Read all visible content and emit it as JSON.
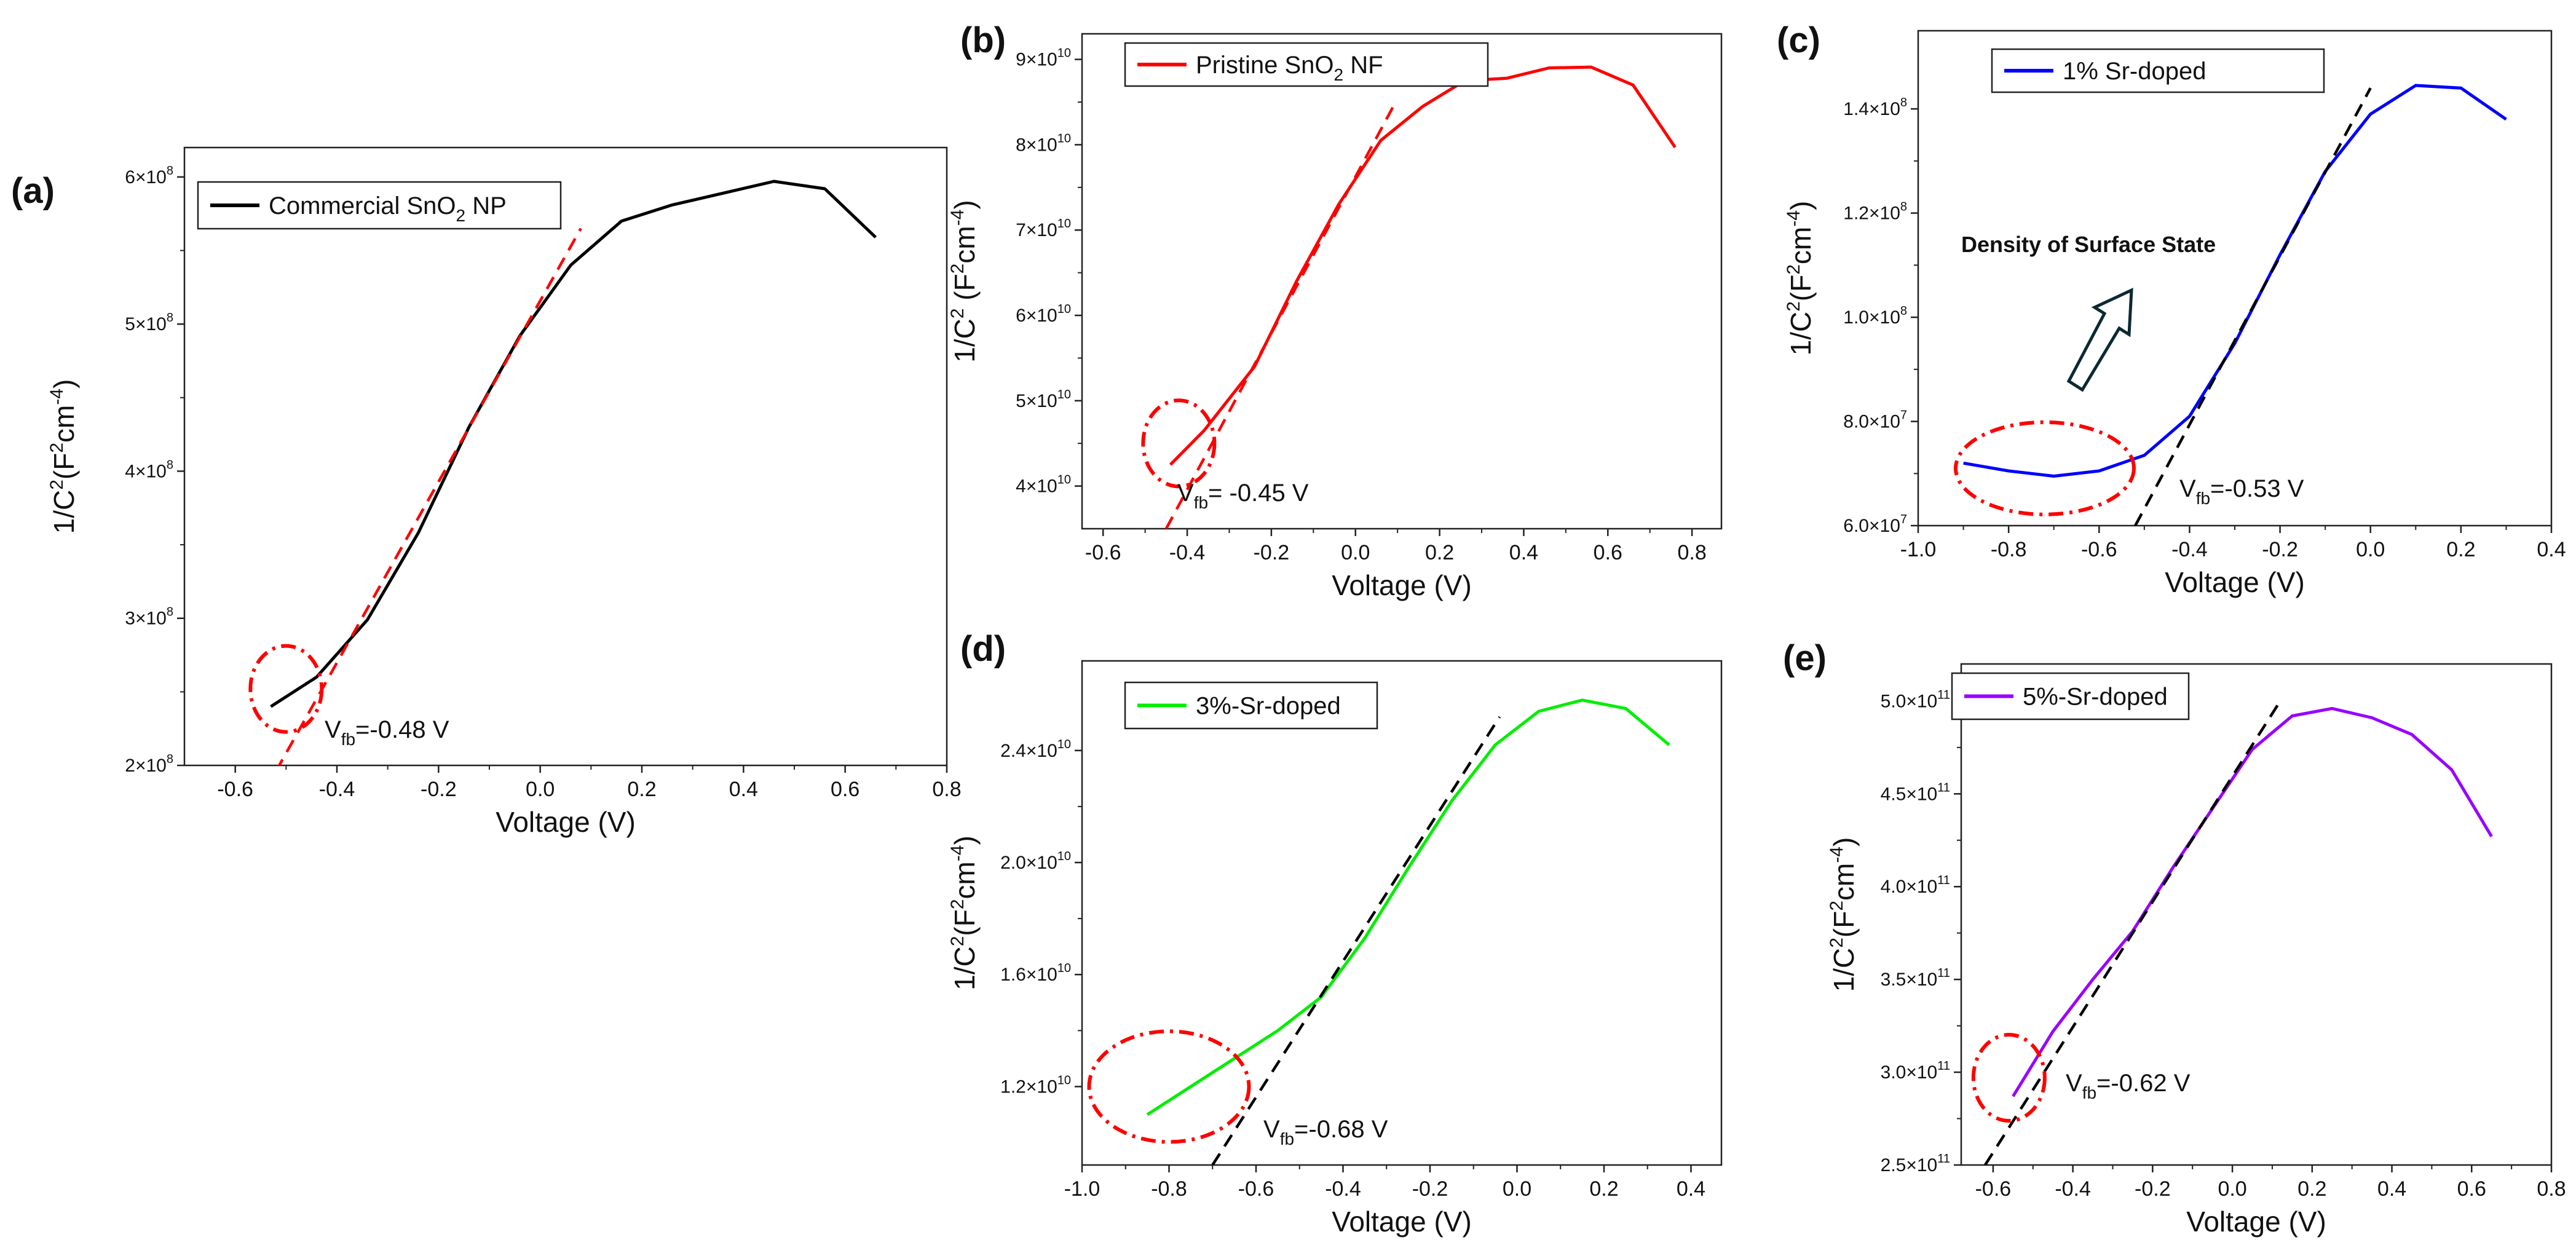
{
  "figure": {
    "panels": [
      "a",
      "b",
      "c",
      "d",
      "e"
    ]
  },
  "chart_data": [
    {
      "id": "a",
      "type": "line",
      "panel_label": "(a)",
      "series": [
        {
          "name": "Commercial SnO2 NP",
          "legend_main": "Commercial SnO",
          "legend_sub": "2",
          "legend_tail": " NP",
          "color": "#000000",
          "x": [
            -0.53,
            -0.44,
            -0.34,
            -0.24,
            -0.14,
            -0.04,
            0.06,
            0.16,
            0.26,
            0.36,
            0.46,
            0.56,
            0.66
          ],
          "y": [
            240000000.0,
            260000000.0,
            299000000.0,
            358000000.0,
            430000000.0,
            492000000.0,
            540000000.0,
            570000000.0,
            581000000.0,
            589000000.0,
            597000000.0,
            592000000.0,
            559000000.0
          ]
        }
      ],
      "fit": {
        "x": [
          -0.52,
          0.08
        ],
        "y": [
          196000000.0,
          565000000.0
        ],
        "color": "#ff0000"
      },
      "xlabel": "Voltage (V)",
      "ylabel": {
        "main": "1/C",
        "sup1": "2",
        "mid": "(F",
        "sup2": "2",
        "mid2": "cm",
        "sup3": "-4",
        "tail": ")"
      },
      "xlim": [
        -0.7,
        0.8
      ],
      "ylim": [
        200000000.0,
        620000000.0
      ],
      "xticks": [
        -0.6,
        -0.4,
        -0.2,
        0.0,
        0.2,
        0.4,
        0.6,
        0.8
      ],
      "xtick_labels": [
        "-0.6",
        "-0.4",
        "-0.2",
        "0.0",
        "0.2",
        "0.4",
        "0.6",
        "0.8"
      ],
      "yticks": [
        200000000.0,
        300000000.0,
        400000000.0,
        500000000.0,
        600000000.0
      ],
      "ytick_labels": [
        {
          "m": "2×10",
          "e": "8"
        },
        {
          "m": "3×10",
          "e": "8"
        },
        {
          "m": "4×10",
          "e": "8"
        },
        {
          "m": "5×10",
          "e": "8"
        },
        {
          "m": "6×10",
          "e": "8"
        }
      ],
      "vfb": {
        "value": -0.48,
        "label": "=-0.48 V"
      },
      "ellipse": {
        "cx": -0.5,
        "cy": 252000000.0
      }
    },
    {
      "id": "b",
      "type": "line",
      "panel_label": "(b)",
      "series": [
        {
          "name": "Pristine SnO2 NF",
          "legend_main": "Pristine SnO",
          "legend_sub": "2",
          "legend_tail": " NF",
          "color": "#ff0000",
          "x": [
            -0.44,
            -0.36,
            -0.24,
            -0.14,
            -0.04,
            0.06,
            0.16,
            0.26,
            0.36,
            0.46,
            0.56,
            0.66,
            0.76
          ],
          "y": [
            42500000000.0,
            46500000000.0,
            54000000000.0,
            64000000000.0,
            73000000000.0,
            80500000000.0,
            84500000000.0,
            87500000000.0,
            87800000000.0,
            89000000000.0,
            89100000000.0,
            87000000000.0,
            79700000000.0
          ]
        }
      ],
      "fit": {
        "x": [
          -0.45,
          0.09
        ],
        "y": [
          35000000000.0,
          84500000000.0
        ],
        "color": "#ff0000"
      },
      "xlabel": "Voltage (V)",
      "ylabel": {
        "main": "1/C",
        "sup1": "2",
        "mid": " (F",
        "sup2": "2",
        "mid2": "cm",
        "sup3": "-4",
        "tail": ")"
      },
      "xlim": [
        -0.65,
        0.87
      ],
      "ylim": [
        35000000000.0,
        93000000000.0
      ],
      "xticks": [
        -0.6,
        -0.4,
        -0.2,
        0.0,
        0.2,
        0.4,
        0.6,
        0.8
      ],
      "xtick_labels": [
        "-0.6",
        "-0.4",
        "-0.2",
        "0.0",
        "0.2",
        "0.4",
        "0.6",
        "0.8"
      ],
      "yticks": [
        40000000000.0,
        50000000000.0,
        60000000000.0,
        70000000000.0,
        80000000000.0,
        90000000000.0
      ],
      "ytick_labels": [
        {
          "m": "4×10",
          "e": "10"
        },
        {
          "m": "5×10",
          "e": "10"
        },
        {
          "m": "6×10",
          "e": "10"
        },
        {
          "m": "7×10",
          "e": "10"
        },
        {
          "m": "8×10",
          "e": "10"
        },
        {
          "m": "9×10",
          "e": "10"
        }
      ],
      "vfb": {
        "value": -0.45,
        "label": "= -0.45 V"
      },
      "ellipse": {
        "cx": -0.42,
        "cy": 45000000000.0
      }
    },
    {
      "id": "c",
      "type": "line",
      "panel_label": "(c)",
      "series": [
        {
          "name": "1% Sr-doped",
          "legend_main": "1% Sr-doped",
          "legend_sub": "",
          "legend_tail": "",
          "color": "#0000ff",
          "x": [
            -0.9,
            -0.8,
            -0.7,
            -0.6,
            -0.5,
            -0.4,
            -0.3,
            -0.2,
            -0.1,
            0.0,
            0.1,
            0.2,
            0.3
          ],
          "y": [
            72000000.0,
            70500000.0,
            69500000.0,
            70500000.0,
            73500000.0,
            81000000.0,
            95000000.0,
            112000000.0,
            128000000.0,
            139000000.0,
            144500000.0,
            144000000.0,
            138000000.0
          ]
        }
      ],
      "fit": {
        "x": [
          -0.52,
          0.0
        ],
        "y": [
          60000000.0,
          144000000.0
        ],
        "color": "#000000"
      },
      "xlabel": "Voltage (V)",
      "ylabel": {
        "main": "1/C",
        "sup1": "2",
        "mid": "(F",
        "sup2": "2",
        "mid2": "cm",
        "sup3": "-4",
        "tail": ")"
      },
      "xlim": [
        -1.0,
        0.4
      ],
      "ylim": [
        60000000.0,
        155000000.0
      ],
      "xticks": [
        -1.0,
        -0.8,
        -0.6,
        -0.4,
        -0.2,
        0.0,
        0.2,
        0.4
      ],
      "xtick_labels": [
        "-1.0",
        "-0.8",
        "-0.6",
        "-0.4",
        "-0.2",
        "0.0",
        "0.2",
        "0.4"
      ],
      "yticks": [
        60000000.0,
        80000000.0,
        100000000.0,
        120000000.0,
        140000000.0
      ],
      "ytick_labels": [
        {
          "m": "6.0×10",
          "e": "7"
        },
        {
          "m": "8.0×10",
          "e": "7"
        },
        {
          "m": "1.0×10",
          "e": "8"
        },
        {
          "m": "1.2×10",
          "e": "8"
        },
        {
          "m": "1.4×10",
          "e": "8"
        }
      ],
      "vfb": {
        "value": -0.53,
        "label": "=-0.53 V"
      },
      "ellipse": {
        "cx": -0.72,
        "cy": 71000000.0
      },
      "annotation": "Density of Surface State"
    },
    {
      "id": "d",
      "type": "line",
      "panel_label": "(d)",
      "series": [
        {
          "name": "3%-Sr-doped",
          "legend_main": "3%-Sr-doped",
          "legend_sub": "",
          "legend_tail": "",
          "color": "#00ee00",
          "x": [
            -0.85,
            -0.75,
            -0.65,
            -0.55,
            -0.45,
            -0.35,
            -0.25,
            -0.15,
            -0.05,
            0.05,
            0.15,
            0.25,
            0.35
          ],
          "y": [
            11000000000.0,
            12000000000.0,
            13000000000.0,
            14000000000.0,
            15200000000.0,
            17300000000.0,
            19800000000.0,
            22200000000.0,
            24200000000.0,
            25400000000.0,
            25800000000.0,
            25500000000.0,
            24200000000.0
          ]
        }
      ],
      "fit": {
        "x": [
          -0.7,
          -0.04
        ],
        "y": [
          9200000000.0,
          25200000000.0
        ],
        "color": "#000000"
      },
      "xlabel": "Voltage (V)",
      "ylabel": {
        "main": "1/C",
        "sup1": "2",
        "mid": "(F",
        "sup2": "2",
        "mid2": "cm",
        "sup3": "-4",
        "tail": ")"
      },
      "xlim": [
        -1.0,
        0.47
      ],
      "ylim": [
        9200000000.0,
        27200000000.0
      ],
      "xticks": [
        -1.0,
        -0.8,
        -0.6,
        -0.4,
        -0.2,
        0.0,
        0.2,
        0.4
      ],
      "xtick_labels": [
        "-1.0",
        "-0.8",
        "-0.6",
        "-0.4",
        "-0.2",
        "0.0",
        "0.2",
        "0.4"
      ],
      "yticks": [
        12000000000.0,
        16000000000.0,
        20000000000.0,
        24000000000.0
      ],
      "ytick_labels": [
        {
          "m": "1.2×10",
          "e": "10"
        },
        {
          "m": "1.6×10",
          "e": "10"
        },
        {
          "m": "2.0×10",
          "e": "10"
        },
        {
          "m": "2.4×10",
          "e": "10"
        }
      ],
      "vfb": {
        "value": -0.68,
        "label": "=-0.68 V"
      },
      "ellipse": {
        "cx": -0.8,
        "cy": 12000000000.0
      }
    },
    {
      "id": "e",
      "type": "line",
      "panel_label": "(e)",
      "series": [
        {
          "name": "5%-Sr-doped",
          "legend_main": "5%-Sr-doped",
          "legend_sub": "",
          "legend_tail": "",
          "color": "#9900ff",
          "x": [
            -0.55,
            -0.45,
            -0.35,
            -0.25,
            -0.15,
            -0.05,
            0.05,
            0.15,
            0.25,
            0.35,
            0.45,
            0.55,
            0.65
          ],
          "y": [
            287000000000.0,
            322000000000.0,
            350000000000.0,
            376000000000.0,
            410000000000.0,
            442000000000.0,
            474000000000.0,
            492000000000.0,
            496000000000.0,
            491000000000.0,
            482000000000.0,
            463000000000.0,
            427000000000.0
          ],
          "color_hex": "#9900ff"
        }
      ],
      "fit": {
        "x": [
          -0.62,
          0.12
        ],
        "y": [
          250000000000.0,
          500000000000.0
        ],
        "color": "#000000"
      },
      "xlabel": "Voltage (V)",
      "ylabel": {
        "main": "1/C",
        "sup1": "2",
        "mid": "(F",
        "sup2": "2",
        "mid2": "cm",
        "sup3": "-4",
        "tail": ")"
      },
      "xlim": [
        -0.68,
        0.8
      ],
      "ylim": [
        250000000000.0,
        520000000000.0
      ],
      "xticks": [
        -0.6,
        -0.4,
        -0.2,
        0.0,
        0.2,
        0.4,
        0.6,
        0.8
      ],
      "xtick_labels": [
        "-0.6",
        "-0.4",
        "-0.2",
        "0.0",
        "0.2",
        "0.4",
        "0.6",
        "0.8"
      ],
      "yticks": [
        250000000000.0,
        300000000000.0,
        350000000000.0,
        400000000000.0,
        450000000000.0,
        500000000000.0
      ],
      "ytick_labels": [
        {
          "m": "2.5×10",
          "e": "11"
        },
        {
          "m": "3.0×10",
          "e": "11"
        },
        {
          "m": "3.5×10",
          "e": "11"
        },
        {
          "m": "4.0×10",
          "e": "11"
        },
        {
          "m": "4.5×10",
          "e": "11"
        },
        {
          "m": "5.0×10",
          "e": "11"
        }
      ],
      "vfb": {
        "value": -0.62,
        "label": "=-0.62 V"
      },
      "ellipse": {
        "cx": -0.56,
        "cy": 297000000000.0
      }
    }
  ],
  "common": {
    "vfb_prefix": "V",
    "vfb_sub": "fb",
    "ellipse_color": "#ff0000",
    "annotation_color": "#0b2a33"
  }
}
